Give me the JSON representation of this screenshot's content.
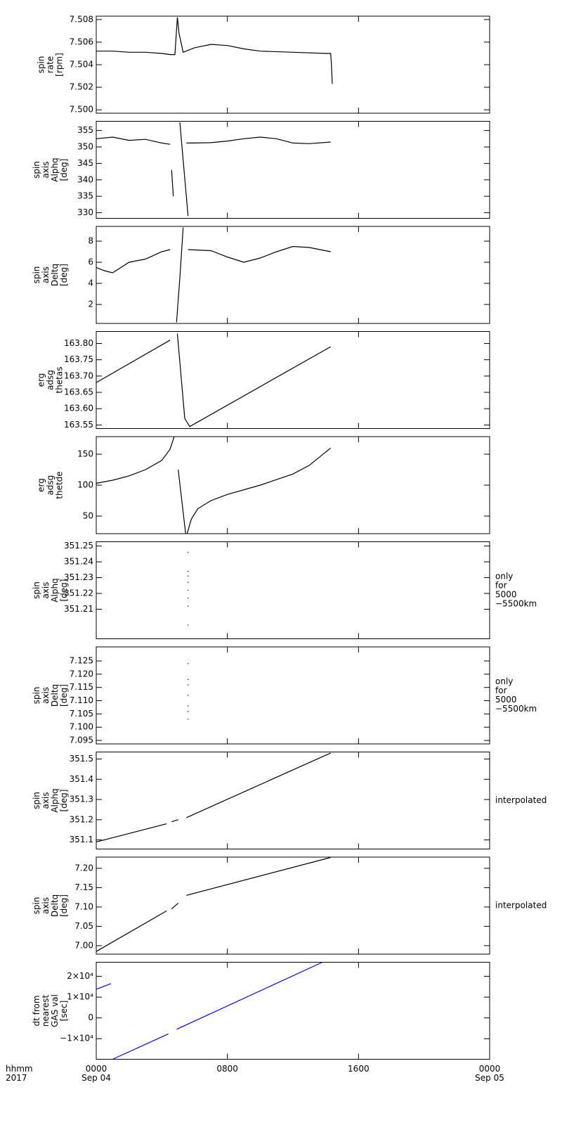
{
  "chart_data": [
    {
      "type": "line",
      "ylabel": [
        "spin",
        "rate",
        "[rpm]"
      ],
      "xlim": [
        0,
        24
      ],
      "xticks": [
        0,
        8,
        16,
        24
      ],
      "ylim": [
        7.4997,
        7.5083
      ],
      "yticks": [
        {
          "value": 7.5,
          "label": "7.500"
        },
        7.502,
        7.504,
        7.506,
        7.508
      ],
      "x": [
        0,
        1,
        2,
        3,
        4,
        4.5,
        4.8,
        4.95,
        5.05,
        5.3,
        6,
        7,
        8,
        9,
        10,
        12,
        14,
        14.3,
        14.35,
        14.4
      ],
      "series": [
        {
          "color": "#000000",
          "values": [
            7.5052,
            7.5052,
            7.5051,
            7.5051,
            7.505,
            7.5049,
            7.5049,
            7.5082,
            7.5068,
            7.5051,
            7.5055,
            7.5058,
            7.5057,
            7.5054,
            7.5052,
            7.5051,
            7.505,
            7.505,
            7.504,
            7.5023
          ]
        }
      ]
    },
    {
      "type": "line",
      "ylabel": [
        "spin",
        "axis",
        "Alphq",
        "[deg]"
      ],
      "xlim": [
        0,
        24
      ],
      "xticks": [
        0,
        8,
        16,
        24
      ],
      "ylim": [
        328.3,
        357.8
      ],
      "yticks": [
        330,
        335,
        340,
        345,
        350,
        355
      ],
      "x": [
        0,
        1,
        2,
        3,
        4,
        4.5,
        null,
        4.6,
        4.7,
        null,
        5.1,
        5.6,
        null,
        5.5,
        6,
        7,
        8,
        9,
        10,
        11,
        12,
        13,
        14.3
      ],
      "series": [
        {
          "color": "#000000",
          "values": [
            352.5,
            353,
            352,
            352.3,
            351.2,
            350.8,
            null,
            343,
            335,
            null,
            357.5,
            329,
            null,
            351.2,
            351.2,
            351.3,
            351.8,
            352.5,
            353,
            352.5,
            351.2,
            351,
            351.5
          ]
        }
      ]
    },
    {
      "type": "line",
      "ylabel": [
        "spin",
        "axis",
        "Deltq",
        "[deg]"
      ],
      "xlim": [
        0,
        24
      ],
      "xticks": [
        0,
        8,
        16,
        24
      ],
      "ylim": [
        0.2,
        9.4
      ],
      "yticks": [
        2,
        4,
        6,
        8
      ],
      "x": [
        0,
        0.5,
        1,
        2,
        3,
        4,
        4.5,
        null,
        4.9,
        5.1,
        5.3,
        null,
        5.6,
        7,
        8,
        9,
        10,
        11,
        12,
        13,
        14.3
      ],
      "series": [
        {
          "color": "#000000",
          "values": [
            5.5,
            5.2,
            5,
            6,
            6.3,
            7,
            7.2,
            null,
            0.3,
            4.5,
            9.3,
            null,
            7.2,
            7.1,
            6.5,
            6,
            6.4,
            7,
            7.5,
            7.4,
            7
          ]
        }
      ]
    },
    {
      "type": "line",
      "ylabel": [
        "erg",
        "adsg",
        "thetas"
      ],
      "xlim": [
        0,
        24
      ],
      "xticks": [
        0,
        8,
        16,
        24
      ],
      "ylim": [
        163.539,
        163.8366
      ],
      "yticks": [
        163.55,
        {
          "value": 163.6,
          "label": "163.60"
        },
        163.65,
        {
          "value": 163.7,
          "label": "163.70"
        },
        163.75,
        {
          "value": 163.8,
          "label": "163.80"
        }
      ],
      "x": [
        0,
        4.5,
        null,
        4.95,
        5.4,
        5.7,
        14.3
      ],
      "series": [
        {
          "color": "#000000",
          "values": [
            163.68,
            163.81,
            null,
            163.83,
            163.57,
            163.545,
            163.79
          ]
        }
      ]
    },
    {
      "type": "line",
      "ylabel": [
        "erg",
        "adsg",
        "thetde"
      ],
      "xlim": [
        0,
        24
      ],
      "xticks": [
        0,
        8,
        16,
        24
      ],
      "ylim": [
        21.6,
        178.4
      ],
      "yticks": [
        50,
        100,
        150
      ],
      "x": [
        0,
        1,
        2,
        3,
        4,
        4.5,
        4.75,
        null,
        5.0,
        5.45,
        null,
        5.55,
        5.8,
        6.2,
        7,
        8,
        10,
        12,
        13,
        14.3
      ],
      "series": [
        {
          "color": "#000000",
          "values": [
            103,
            108,
            115,
            125,
            140,
            158,
            178,
            null,
            125,
            22,
            null,
            22,
            45,
            62,
            75,
            85,
            100,
            118,
            132,
            160
          ]
        }
      ]
    },
    {
      "type": "scatter",
      "ylabel": [
        "spin",
        "axis",
        "Alphq",
        "[deg]"
      ],
      "annotation": [
        "only",
        "for",
        "5000",
        "−5500km"
      ],
      "xlim": [
        0,
        24
      ],
      "xticks": [
        0,
        8,
        16,
        24
      ],
      "ylim": [
        351.1913,
        351.2527
      ],
      "yticks": [
        351.21,
        351.22,
        351.23,
        351.24,
        351.25
      ],
      "x": [
        5.6,
        5.6,
        5.6,
        5.6,
        5.6,
        5.6,
        5.6,
        5.6
      ],
      "series": [
        {
          "color": "#000000",
          "values": [
            351.246,
            351.234,
            351.231,
            351.227,
            351.222,
            351.217,
            351.212,
            351.2
          ]
        }
      ]
    },
    {
      "type": "scatter",
      "ylabel": [
        "spin",
        "axis",
        "Deltq",
        "[deg]"
      ],
      "annotation": [
        "only",
        "for",
        "5000",
        "−5500km"
      ],
      "xlim": [
        0,
        24
      ],
      "xticks": [
        0,
        8,
        16,
        24
      ],
      "ylim": [
        7.0937,
        7.1303
      ],
      "yticks": [
        7.095,
        {
          "value": 7.1,
          "label": "7.100"
        },
        7.105,
        {
          "value": 7.11,
          "label": "7.110"
        },
        7.115,
        {
          "value": 7.12,
          "label": "7.120"
        },
        7.125
      ],
      "x": [
        5.6,
        5.6,
        5.6,
        5.6,
        5.6,
        5.6,
        5.6
      ],
      "series": [
        {
          "color": "#000000",
          "values": [
            7.124,
            7.118,
            7.116,
            7.112,
            7.108,
            7.106,
            7.103
          ]
        }
      ]
    },
    {
      "type": "line",
      "ylabel": [
        "spin",
        "axis",
        "Alphq",
        "[deg]"
      ],
      "annotation": [
        "interpolated"
      ],
      "xlim": [
        0,
        24
      ],
      "xticks": [
        0,
        8,
        16,
        24
      ],
      "ylim": [
        351.055,
        351.535
      ],
      "yticks": [
        351.1,
        351.2,
        351.3,
        351.4,
        351.5
      ],
      "x": [
        0,
        4.3,
        null,
        4.6,
        5.0,
        null,
        5.5,
        14.3
      ],
      "series": [
        {
          "color": "#000000",
          "values": [
            351.09,
            351.18,
            null,
            351.19,
            351.2,
            null,
            351.21,
            351.53
          ]
        }
      ]
    },
    {
      "type": "line",
      "ylabel": [
        "spin",
        "axis",
        "Deltq",
        "[deg]"
      ],
      "annotation": [
        "interpolated"
      ],
      "xlim": [
        0,
        24
      ],
      "xticks": [
        0,
        8,
        16,
        24
      ],
      "ylim": [
        6.978,
        7.229
      ],
      "yticks": [
        {
          "value": 7,
          "label": "7.00"
        },
        7.05,
        {
          "value": 7.1,
          "label": "7.10"
        },
        7.15,
        {
          "value": 7.2,
          "label": "7.20"
        }
      ],
      "x": [
        0,
        4.3,
        null,
        4.6,
        5.0,
        null,
        5.5,
        14.3
      ],
      "series": [
        {
          "color": "#000000",
          "values": [
            6.985,
            7.09,
            null,
            7.095,
            7.11,
            null,
            7.13,
            7.228
          ]
        }
      ]
    },
    {
      "type": "line",
      "ylabel": [
        "dt from",
        "nearest",
        "GAS val",
        "[sec]"
      ],
      "xlim": [
        0,
        24
      ],
      "xticks": [
        {
          "value": 0,
          "label": "0000"
        },
        {
          "value": 8,
          "label": "0800"
        },
        {
          "value": 16,
          "label": "1600"
        },
        {
          "value": 24,
          "label": "0000"
        }
      ],
      "x_dates": [
        "Sep 04",
        null,
        null,
        "Sep 05"
      ],
      "time_axis_label": [
        "hhmm",
        "2017"
      ],
      "ylim": [
        -19900,
        26800
      ],
      "yticks": [
        {
          "value": -10000,
          "label": "−1×10⁴"
        },
        0,
        {
          "value": 10000,
          "label": "1×10⁴"
        },
        {
          "value": 20000,
          "label": "2×10⁴"
        }
      ],
      "x": [
        0,
        0.9,
        null,
        1.0,
        4.4,
        null,
        4.9,
        13.8
      ],
      "series": [
        {
          "color": "#0000ff",
          "values": [
            13800,
            16500,
            null,
            -19900,
            -7700,
            null,
            -5500,
            26800
          ]
        }
      ]
    }
  ]
}
